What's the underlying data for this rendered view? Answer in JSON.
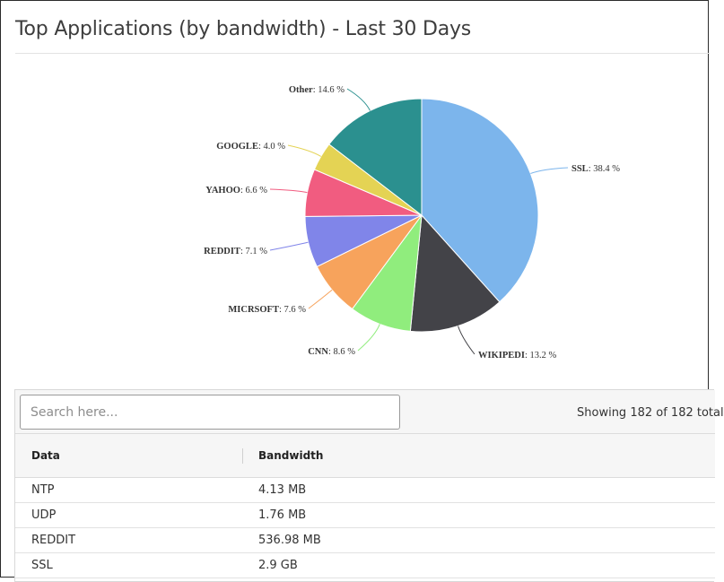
{
  "title": "Top Applications (by bandwidth) - Last 30 Days",
  "chart_data": {
    "type": "pie",
    "slices": [
      {
        "name": "SSL",
        "value": 38.4,
        "color": "#7cb5ec"
      },
      {
        "name": "WIKIPEDI",
        "value": 13.2,
        "color": "#434348"
      },
      {
        "name": "CNN",
        "value": 8.6,
        "color": "#90ed7d"
      },
      {
        "name": "MICRSOFT",
        "value": 7.6,
        "color": "#f7a35c"
      },
      {
        "name": "REDDIT",
        "value": 7.1,
        "color": "#8085e9"
      },
      {
        "name": "YAHOO",
        "value": 6.6,
        "color": "#f15c80"
      },
      {
        "name": "GOOGLE",
        "value": 4.0,
        "color": "#e4d354"
      },
      {
        "name": "Other",
        "value": 14.6,
        "color": "#2b908f"
      }
    ],
    "unit": "%",
    "label_format": "{name}: {value} %"
  },
  "table": {
    "search_placeholder": "Search here...",
    "count_text": "Showing 182 of 182 total",
    "columns": [
      "Data",
      "Bandwidth"
    ],
    "rows": [
      {
        "data": "NTP",
        "bandwidth": "4.13 MB"
      },
      {
        "data": "UDP",
        "bandwidth": "1.76 MB"
      },
      {
        "data": "REDDIT",
        "bandwidth": "536.98 MB"
      },
      {
        "data": "SSL",
        "bandwidth": "2.9 GB"
      }
    ]
  }
}
